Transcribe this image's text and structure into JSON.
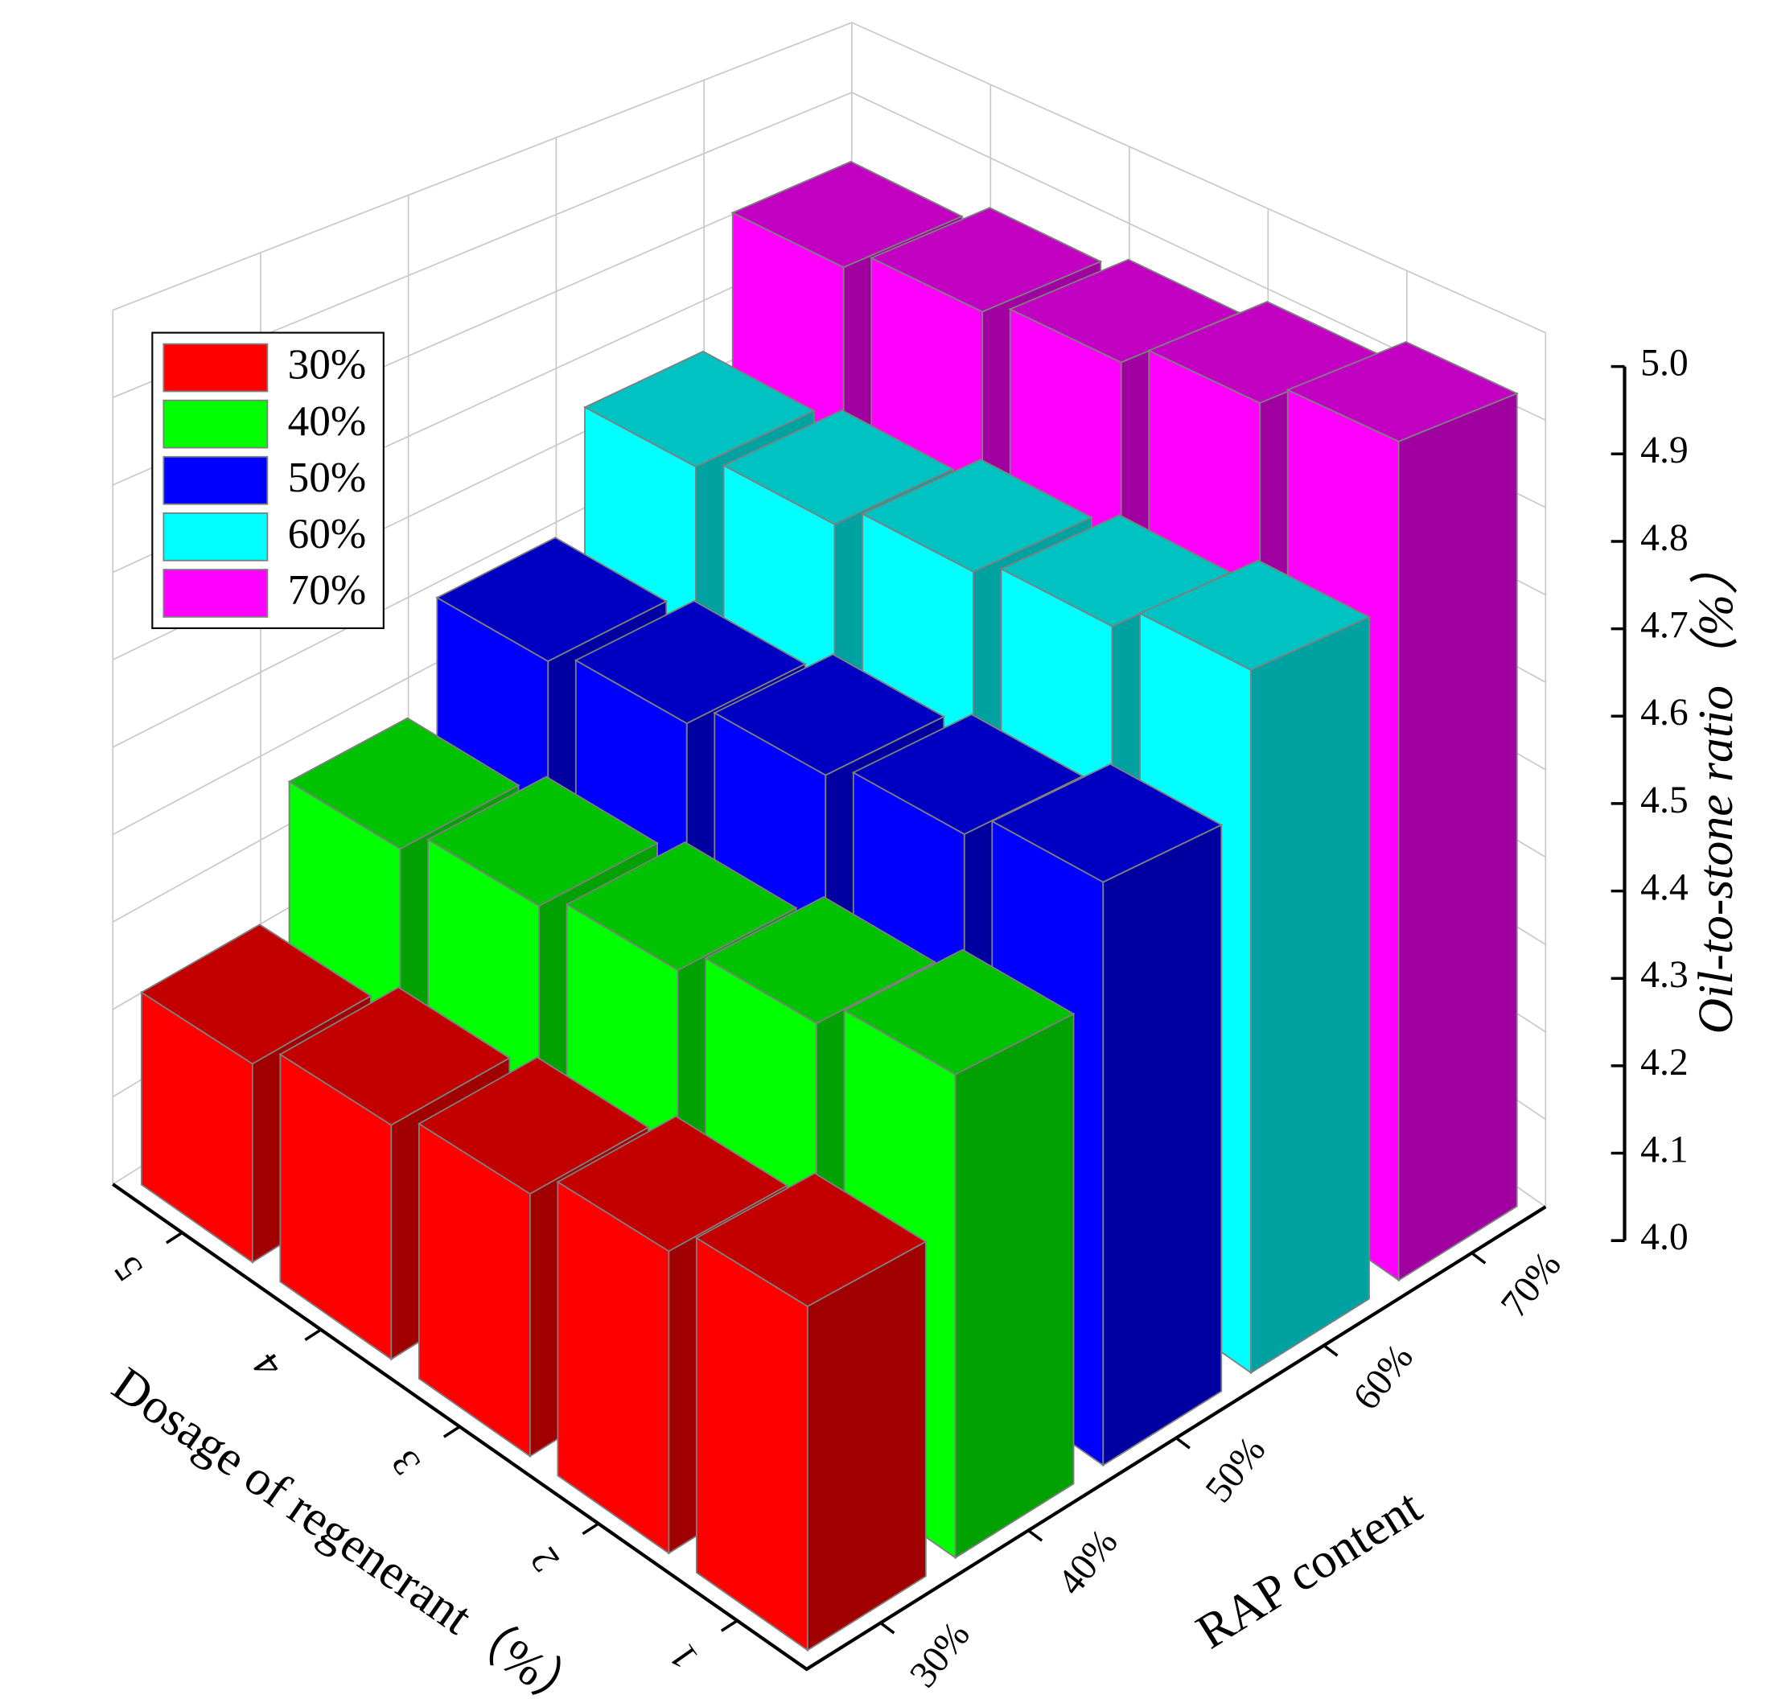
{
  "chart_data": {
    "type": "bar3d",
    "categories": [
      "1",
      "2",
      "3",
      "4",
      "5"
    ],
    "x_label": "Dosage of regenerant（%）",
    "y_categories": [
      "30%",
      "40%",
      "50%",
      "60%",
      "70%"
    ],
    "y_label": "RAP content",
    "z_label": "Oil-to-stone ratio（%）",
    "zlim": [
      4.0,
      5.0
    ],
    "zticks": [
      {
        "value": 4.0,
        "label": "4.0"
      },
      4.1,
      4.2,
      4.3,
      4.4,
      4.5,
      4.6,
      4.7,
      4.8,
      4.9,
      {
        "value": 5.0,
        "label": "5.0"
      }
    ],
    "grid": true,
    "legend": "top-left",
    "series": [
      {
        "name": "30%",
        "color": "#ff0000",
        "values": [
          4.33,
          4.3,
          4.27,
          4.25,
          4.22
        ]
      },
      {
        "name": "40%",
        "color": "#00ff00",
        "values": [
          4.48,
          4.45,
          4.42,
          4.4,
          4.37
        ]
      },
      {
        "name": "50%",
        "color": "#0000ff",
        "values": [
          4.6,
          4.57,
          4.55,
          4.52,
          4.5
        ]
      },
      {
        "name": "60%",
        "color": "#00ffff",
        "values": [
          4.75,
          4.72,
          4.7,
          4.67,
          4.65
        ]
      },
      {
        "name": "70%",
        "color": "#ff00ff",
        "values": [
          4.93,
          4.9,
          4.87,
          4.85,
          4.82
        ]
      }
    ]
  }
}
